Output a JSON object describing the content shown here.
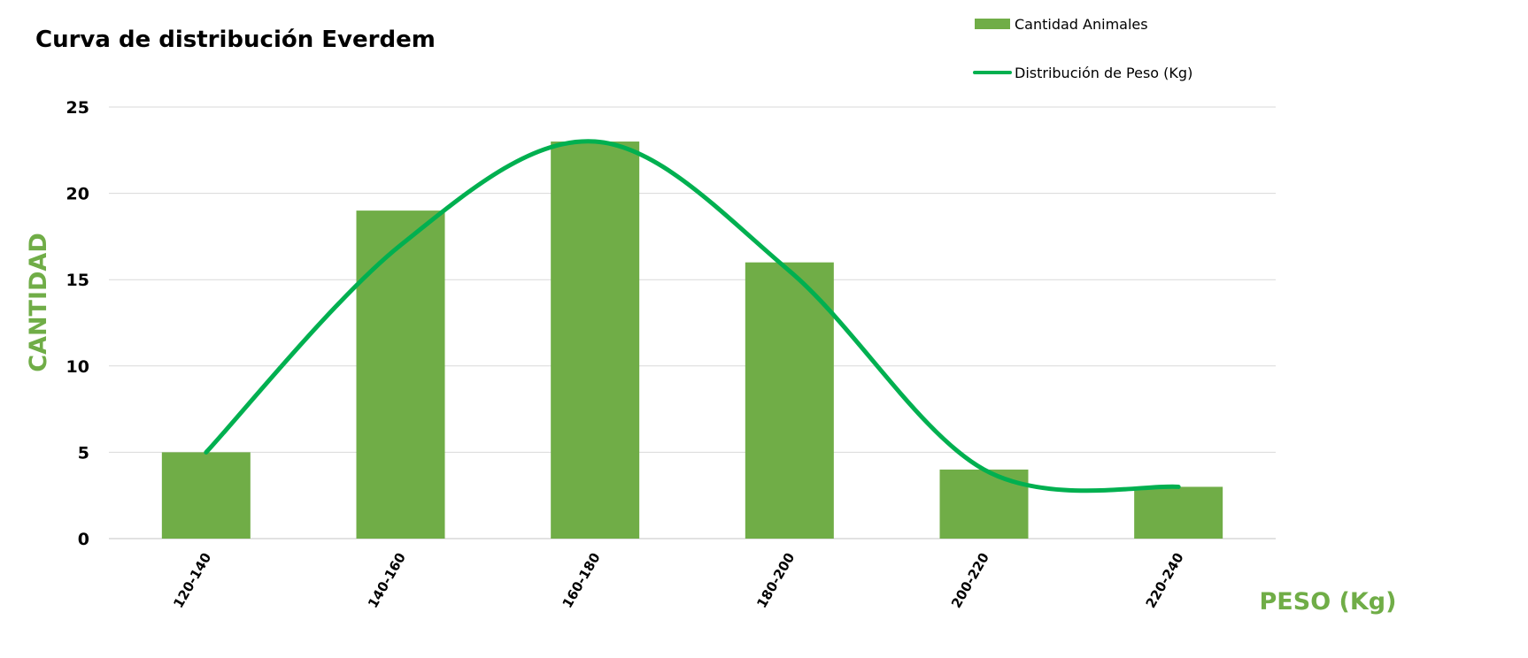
{
  "chart_data": {
    "type": "bar",
    "title": "Curva de distribución Everdem",
    "xlabel": "PESO (Kg)",
    "ylabel": "CANTIDAD",
    "categories": [
      "120-140",
      "140-160",
      "160-180",
      "180-200",
      "200-220",
      "220-240"
    ],
    "series": [
      {
        "name": "Cantidad Animales",
        "type": "bar",
        "values": [
          5,
          19,
          23,
          16,
          4,
          3
        ]
      },
      {
        "name": "Distribución de Peso (Kg)",
        "type": "line",
        "smooth": true,
        "values": [
          5,
          17,
          23,
          15.5,
          4,
          3
        ]
      }
    ],
    "ylim": [
      0,
      25
    ],
    "yticks": [
      0,
      5,
      10,
      15,
      20,
      25
    ],
    "grid": true,
    "legend_position": "top-right"
  },
  "colors": {
    "bar": "#70ad47",
    "line": "#00b050",
    "axis_label": "#70ad47",
    "grid": "#d9d9d9"
  }
}
